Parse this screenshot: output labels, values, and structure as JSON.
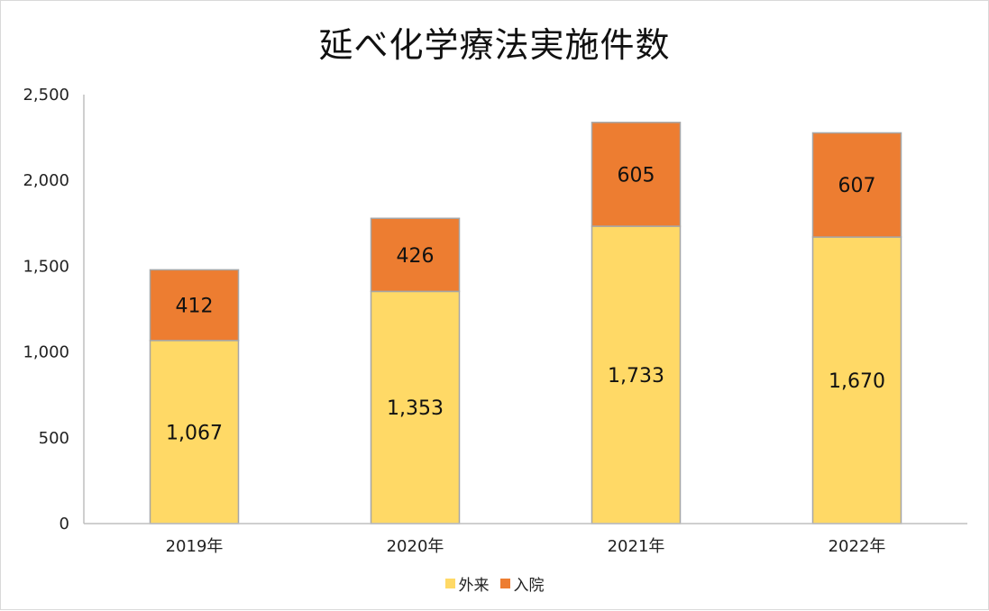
{
  "chart_data": {
    "type": "bar",
    "stacked": true,
    "title": "延べ化学療法実施件数",
    "categories": [
      "2019年",
      "2020年",
      "2021年",
      "2022年"
    ],
    "series": [
      {
        "name": "外来",
        "values": [
          1067,
          1353,
          1733,
          1670
        ],
        "color": "#FFD966"
      },
      {
        "name": "入院",
        "values": [
          412,
          426,
          605,
          607
        ],
        "color": "#ED7D31"
      }
    ],
    "ylim": [
      0,
      2500
    ],
    "yticks": [
      0,
      500,
      1000,
      1500,
      2000,
      2500
    ],
    "ytick_labels": [
      "0",
      "500",
      "1,000",
      "1,500",
      "2,000",
      "2,500"
    ],
    "data_labels": [
      [
        "1,067",
        "1,353",
        "1,733",
        "1,670"
      ],
      [
        "412",
        "426",
        "605",
        "607"
      ]
    ],
    "grid": false,
    "legend": "bottom"
  }
}
